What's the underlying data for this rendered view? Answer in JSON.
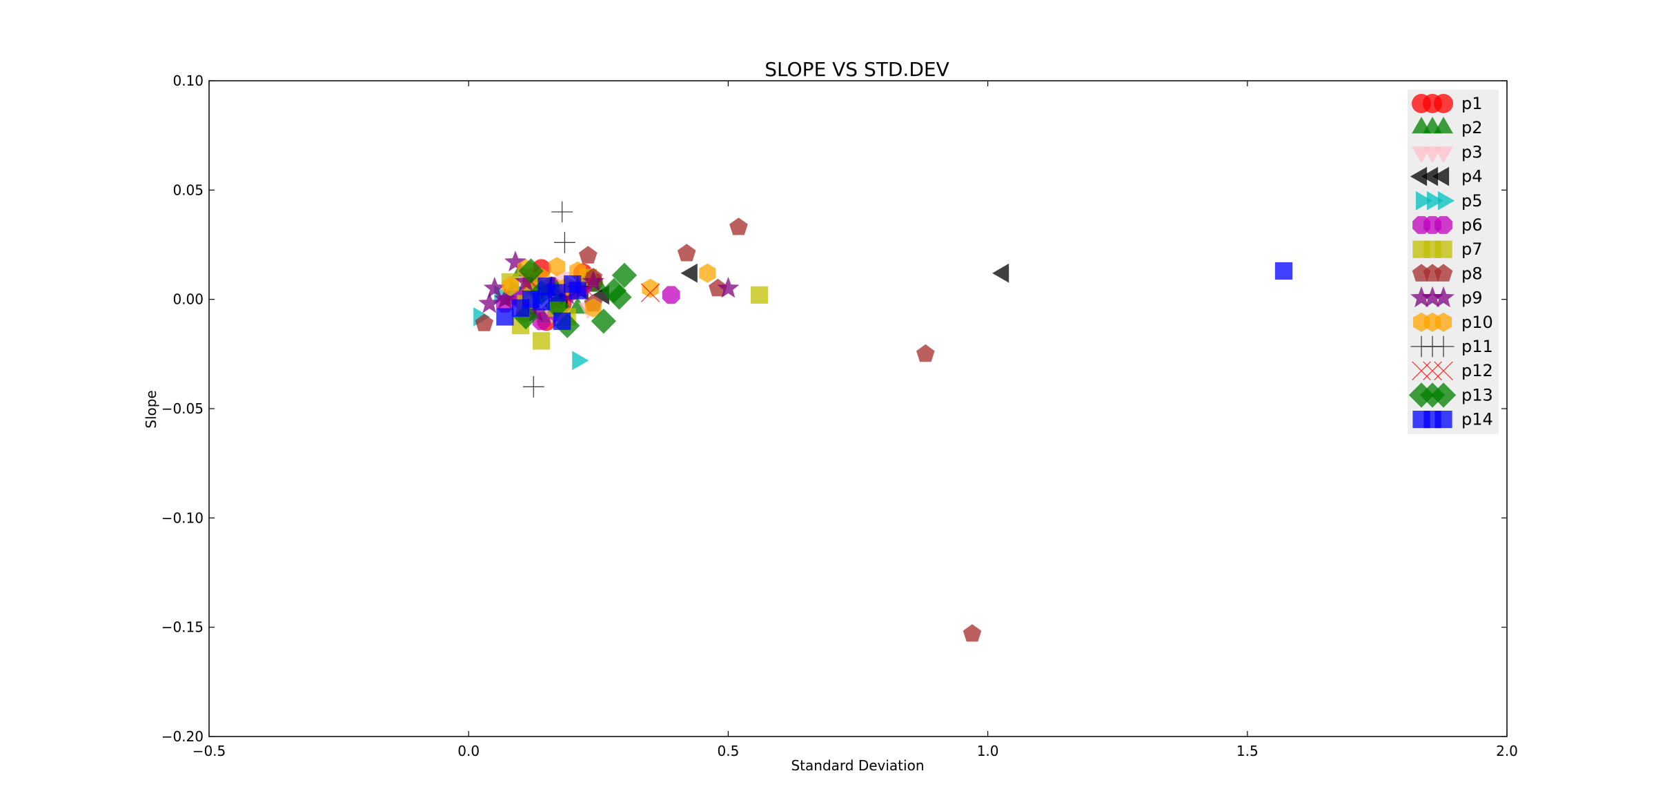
{
  "chart_data": {
    "type": "scatter",
    "title": "SLOPE VS STD.DEV",
    "xlabel": "Standard Deviation",
    "ylabel": "Slope",
    "xlim": [
      -0.5,
      2.0
    ],
    "ylim": [
      -0.2,
      0.1
    ],
    "xticks": [
      -0.5,
      0.0,
      0.5,
      1.0,
      1.5,
      2.0
    ],
    "xtick_labels": [
      "−0.5",
      "0.0",
      "0.5",
      "1.0",
      "1.5",
      "2.0"
    ],
    "yticks": [
      0.1,
      0.05,
      0.0,
      -0.05,
      -0.1,
      -0.15,
      -0.2
    ],
    "ytick_labels": [
      "0.10",
      "0.05",
      "0.00",
      "−0.05",
      "−0.10",
      "−0.15",
      "−0.20"
    ],
    "grid": false,
    "legend_position": "top-right",
    "series": [
      {
        "name": "p1",
        "marker": "circle",
        "color": "#ff0000",
        "points": [
          [
            0.14,
            0.014
          ],
          [
            0.12,
            0.01
          ],
          [
            0.16,
            0.006
          ],
          [
            0.2,
            0.004
          ],
          [
            0.09,
            0.002
          ],
          [
            0.18,
            -0.002
          ],
          [
            0.24,
            0.008
          ],
          [
            0.11,
            -0.006
          ],
          [
            0.15,
            -0.01
          ],
          [
            0.22,
            0.012
          ]
        ]
      },
      {
        "name": "p2",
        "marker": "triangle-up",
        "color": "#008000",
        "points": [
          [
            0.1,
            0.012
          ],
          [
            0.13,
            0.008
          ],
          [
            0.17,
            0.004
          ],
          [
            0.21,
            -0.004
          ],
          [
            0.08,
            0.0
          ],
          [
            0.15,
            -0.008
          ],
          [
            0.25,
            0.006
          ],
          [
            0.12,
            0.002
          ]
        ]
      },
      {
        "name": "p3",
        "marker": "triangle-down",
        "color": "#ffc0cb",
        "points": [
          [
            0.09,
            0.008
          ],
          [
            0.13,
            0.002
          ],
          [
            0.18,
            0.01
          ],
          [
            0.23,
            -0.004
          ],
          [
            0.16,
            -0.006
          ]
        ]
      },
      {
        "name": "p4",
        "marker": "triangle-left",
        "color": "#000000",
        "points": [
          [
            1.03,
            0.012
          ],
          [
            0.43,
            0.012
          ],
          [
            0.22,
            0.004
          ],
          [
            0.18,
            0.0
          ],
          [
            0.15,
            0.006
          ],
          [
            0.26,
            0.002
          ],
          [
            0.12,
            -0.004
          ]
        ]
      },
      {
        "name": "p5",
        "marker": "triangle-right",
        "color": "#00bfbf",
        "points": [
          [
            0.21,
            -0.028
          ],
          [
            0.02,
            -0.008
          ],
          [
            0.09,
            0.004
          ],
          [
            0.13,
            0.0
          ],
          [
            0.06,
            0.002
          ]
        ]
      },
      {
        "name": "p6",
        "marker": "octagon",
        "color": "#bf00bf",
        "points": [
          [
            0.39,
            0.002
          ],
          [
            0.07,
            -0.002
          ],
          [
            0.12,
            0.004
          ],
          [
            0.17,
            -0.006
          ],
          [
            0.1,
            0.0
          ],
          [
            0.22,
            0.006
          ],
          [
            0.14,
            -0.01
          ]
        ]
      },
      {
        "name": "p7",
        "marker": "square",
        "color": "#bfbf00",
        "points": [
          [
            0.56,
            0.002
          ],
          [
            0.14,
            -0.019
          ],
          [
            0.1,
            -0.012
          ],
          [
            0.08,
            0.008
          ],
          [
            0.12,
            0.004
          ],
          [
            0.17,
            -0.004
          ],
          [
            0.23,
            0.01
          ],
          [
            0.19,
            -0.008
          ],
          [
            0.11,
            -0.002
          ]
        ]
      },
      {
        "name": "p8",
        "marker": "pentagon",
        "color": "#a52a2a",
        "points": [
          [
            0.52,
            0.033
          ],
          [
            0.42,
            0.021
          ],
          [
            0.23,
            0.02
          ],
          [
            0.48,
            0.005
          ],
          [
            0.24,
            0.01
          ],
          [
            0.03,
            -0.011
          ],
          [
            0.24,
            -0.002
          ],
          [
            0.88,
            -0.025
          ],
          [
            0.97,
            -0.153
          ]
        ]
      },
      {
        "name": "p9",
        "marker": "star",
        "color": "#800080",
        "points": [
          [
            0.5,
            0.005
          ],
          [
            0.09,
            0.017
          ],
          [
            0.05,
            0.005
          ],
          [
            0.04,
            -0.002
          ],
          [
            0.11,
            0.008
          ],
          [
            0.15,
            0.004
          ],
          [
            0.19,
            0.002
          ],
          [
            0.24,
            0.008
          ],
          [
            0.07,
            0.0
          ],
          [
            0.13,
            -0.006
          ]
        ]
      },
      {
        "name": "p10",
        "marker": "hexagon",
        "color": "#ffa500",
        "points": [
          [
            0.46,
            0.012
          ],
          [
            0.35,
            0.005
          ],
          [
            0.17,
            0.015
          ],
          [
            0.21,
            0.013
          ],
          [
            0.11,
            0.014
          ],
          [
            0.14,
            0.01
          ],
          [
            0.08,
            0.006
          ],
          [
            0.24,
            -0.004
          ],
          [
            0.19,
            0.006
          ]
        ]
      },
      {
        "name": "p11",
        "marker": "plus",
        "color": "#000000",
        "points": [
          [
            0.18,
            0.04
          ],
          [
            0.185,
            0.026
          ],
          [
            0.125,
            -0.04
          ],
          [
            0.21,
            0.006
          ],
          [
            0.16,
            0.002
          ]
        ]
      },
      {
        "name": "p12",
        "marker": "x",
        "color": "#ff0000",
        "points": [
          [
            0.35,
            0.003
          ],
          [
            0.22,
            0.006
          ],
          [
            0.16,
            0.0
          ],
          [
            0.12,
            0.008
          ]
        ]
      },
      {
        "name": "p13",
        "marker": "diamond",
        "color": "#008000",
        "points": [
          [
            0.3,
            0.011
          ],
          [
            0.29,
            0.001
          ],
          [
            0.28,
            0.004
          ],
          [
            0.26,
            -0.01
          ],
          [
            0.19,
            -0.012
          ],
          [
            0.12,
            0.013
          ],
          [
            0.11,
            -0.008
          ],
          [
            0.14,
            0.003
          ],
          [
            0.17,
            -0.003
          ]
        ]
      },
      {
        "name": "p14",
        "marker": "square",
        "color": "#0000ff",
        "points": [
          [
            1.57,
            0.013
          ],
          [
            0.2,
            0.007
          ],
          [
            0.17,
            0.003
          ],
          [
            0.14,
            -0.001
          ],
          [
            0.07,
            -0.008
          ],
          [
            0.12,
            0.0
          ],
          [
            0.18,
            -0.01
          ],
          [
            0.21,
            0.004
          ],
          [
            0.1,
            -0.004
          ],
          [
            0.15,
            0.006
          ]
        ]
      }
    ]
  }
}
